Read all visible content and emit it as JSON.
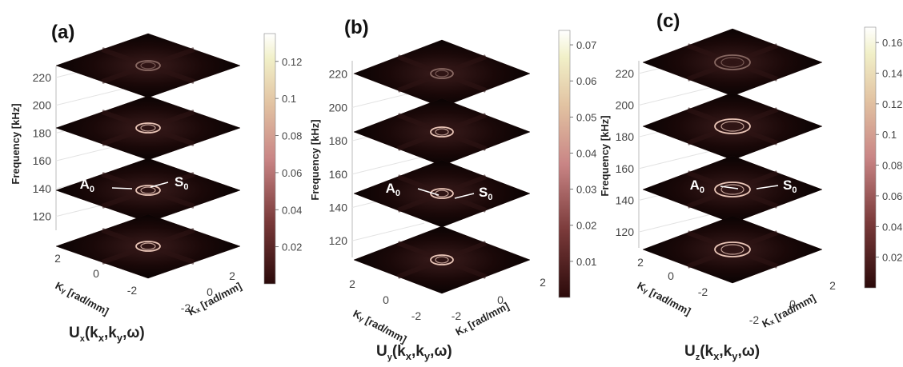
{
  "chart_data": [
    {
      "type": "heatmap",
      "panel": "(a)",
      "title": "",
      "zlabel": "Frequency [kHz]",
      "xlabel": "Kₓ [rad/mm]",
      "ylabel": "Kᵧ [rad/mm]",
      "z_ticks": [
        120,
        140,
        160,
        180,
        200,
        220
      ],
      "x_ticks": [
        "-2",
        "0",
        "2"
      ],
      "y_ticks": [
        "2",
        "0",
        "-2"
      ],
      "slices_khz": [
        120,
        150,
        185,
        220
      ],
      "colorbar_ticks": [
        "0.02",
        "0.04",
        "0.06",
        "0.08",
        "0.1",
        "0.12"
      ],
      "colorbar_max": 0.135,
      "annotations": [
        "A0",
        "S0"
      ],
      "caption": "Ux(kx,ky,ω)"
    },
    {
      "type": "heatmap",
      "panel": "(b)",
      "title": "",
      "zlabel": "Frequency [kHz]",
      "xlabel": "Kₓ [rad/mm]",
      "ylabel": "Kᵧ [rad/mm]",
      "z_ticks": [
        120,
        140,
        160,
        180,
        200,
        220
      ],
      "x_ticks": [
        "-2",
        "0",
        "2"
      ],
      "y_ticks": [
        "2",
        "0",
        "-2"
      ],
      "slices_khz": [
        120,
        150,
        185,
        220
      ],
      "colorbar_ticks": [
        "0.01",
        "0.02",
        "0.03",
        "0.04",
        "0.05",
        "0.06",
        "0.07"
      ],
      "colorbar_max": 0.074,
      "annotations": [
        "A0",
        "S0"
      ],
      "caption": "Uy(kx,ky,ω)"
    },
    {
      "type": "heatmap",
      "panel": "(c)",
      "title": "",
      "zlabel": "Frequency [kHz]",
      "xlabel": "Kₓ [rad/mm]",
      "ylabel": "Kᵧ [rad/mm]",
      "z_ticks": [
        120,
        140,
        160,
        180,
        200,
        220
      ],
      "x_ticks": [
        "-2",
        "0",
        "2"
      ],
      "y_ticks": [
        "2",
        "0",
        "-2"
      ],
      "slices_khz": [
        120,
        150,
        185,
        220
      ],
      "colorbar_ticks": [
        "0.02",
        "0.04",
        "0.06",
        "0.08",
        "0.1",
        "0.12",
        "0.14",
        "0.16"
      ],
      "colorbar_max": 0.17,
      "annotations": [
        "A0",
        "S0"
      ],
      "caption": "Uz(kx,ky,ω)"
    }
  ],
  "captions": {
    "a_main": "U",
    "a_sub": "x",
    "a_args": "(k",
    "a_kx": "x",
    "a_mid": ",k",
    "a_ky": "y",
    "a_end": ",ω)",
    "b_sub": "y",
    "c_sub": "z"
  },
  "colors": {
    "slice": "#0d0505",
    "ring": "#f2cdbf",
    "colormap": [
      "#2b0a0a",
      "#7a3a3a",
      "#c98585",
      "#e2c3a2",
      "#f1f0c8",
      "#ffffff"
    ]
  }
}
